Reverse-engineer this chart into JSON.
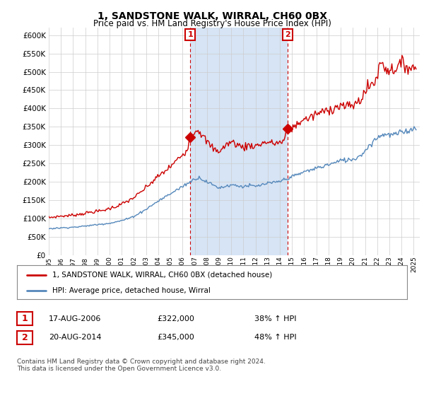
{
  "title": "1, SANDSTONE WALK, WIRRAL, CH60 0BX",
  "subtitle": "Price paid vs. HM Land Registry's House Price Index (HPI)",
  "bg_color": "#ffffff",
  "chart_bg_color": "#ffffff",
  "shade_color": "#d6e4f5",
  "red_line_color": "#cc0000",
  "blue_line_color": "#5588bb",
  "grid_color": "#cccccc",
  "ylim": [
    0,
    620000
  ],
  "yticks": [
    0,
    50000,
    100000,
    150000,
    200000,
    250000,
    300000,
    350000,
    400000,
    450000,
    500000,
    550000,
    600000
  ],
  "xlim_start": 1995,
  "xlim_end": 2025.5,
  "legend_entries": [
    "1, SANDSTONE WALK, WIRRAL, CH60 0BX (detached house)",
    "HPI: Average price, detached house, Wirral"
  ],
  "table_rows": [
    {
      "num": "1",
      "date": "17-AUG-2006",
      "price": "£322,000",
      "hpi": "38% ↑ HPI"
    },
    {
      "num": "2",
      "date": "20-AUG-2014",
      "price": "£345,000",
      "hpi": "48% ↑ HPI"
    }
  ],
  "footnote": "Contains HM Land Registry data © Crown copyright and database right 2024.\nThis data is licensed under the Open Government Licence v3.0.",
  "sale1_year": 2006.63,
  "sale1_price": 322000,
  "sale2_year": 2014.63,
  "sale2_price": 345000,
  "red_waypoints": [
    [
      1995.0,
      103000
    ],
    [
      1995.5,
      105000
    ],
    [
      1996.0,
      107000
    ],
    [
      1996.5,
      108000
    ],
    [
      1997.0,
      110000
    ],
    [
      1997.5,
      112000
    ],
    [
      1998.0,
      115000
    ],
    [
      1998.5,
      118000
    ],
    [
      1999.0,
      120000
    ],
    [
      1999.5,
      123000
    ],
    [
      2000.0,
      128000
    ],
    [
      2000.5,
      133000
    ],
    [
      2001.0,
      140000
    ],
    [
      2001.5,
      148000
    ],
    [
      2002.0,
      158000
    ],
    [
      2002.5,
      170000
    ],
    [
      2003.0,
      185000
    ],
    [
      2003.5,
      200000
    ],
    [
      2004.0,
      215000
    ],
    [
      2004.5,
      228000
    ],
    [
      2005.0,
      242000
    ],
    [
      2005.5,
      258000
    ],
    [
      2006.0,
      275000
    ],
    [
      2006.4,
      295000
    ],
    [
      2006.63,
      322000
    ],
    [
      2007.0,
      338000
    ],
    [
      2007.3,
      342000
    ],
    [
      2007.6,
      328000
    ],
    [
      2008.0,
      310000
    ],
    [
      2008.5,
      292000
    ],
    [
      2009.0,
      285000
    ],
    [
      2009.5,
      298000
    ],
    [
      2010.0,
      308000
    ],
    [
      2010.5,
      302000
    ],
    [
      2011.0,
      295000
    ],
    [
      2011.5,
      300000
    ],
    [
      2012.0,
      298000
    ],
    [
      2012.5,
      305000
    ],
    [
      2013.0,
      308000
    ],
    [
      2013.5,
      305000
    ],
    [
      2014.0,
      308000
    ],
    [
      2014.4,
      318000
    ],
    [
      2014.63,
      345000
    ],
    [
      2015.0,
      348000
    ],
    [
      2015.5,
      360000
    ],
    [
      2016.0,
      370000
    ],
    [
      2016.5,
      375000
    ],
    [
      2017.0,
      385000
    ],
    [
      2017.5,
      390000
    ],
    [
      2018.0,
      398000
    ],
    [
      2018.5,
      402000
    ],
    [
      2019.0,
      408000
    ],
    [
      2019.5,
      405000
    ],
    [
      2020.0,
      410000
    ],
    [
      2020.5,
      420000
    ],
    [
      2021.0,
      445000
    ],
    [
      2021.5,
      465000
    ],
    [
      2022.0,
      490000
    ],
    [
      2022.3,
      525000
    ],
    [
      2022.6,
      515000
    ],
    [
      2023.0,
      505000
    ],
    [
      2023.5,
      510000
    ],
    [
      2024.0,
      520000
    ],
    [
      2024.5,
      515000
    ],
    [
      2025.0,
      510000
    ]
  ],
  "blue_waypoints": [
    [
      1995.0,
      73000
    ],
    [
      1995.5,
      74000
    ],
    [
      1996.0,
      75000
    ],
    [
      1996.5,
      76000
    ],
    [
      1997.0,
      77000
    ],
    [
      1997.5,
      78000
    ],
    [
      1998.0,
      80000
    ],
    [
      1998.5,
      82000
    ],
    [
      1999.0,
      84000
    ],
    [
      1999.5,
      86000
    ],
    [
      2000.0,
      88000
    ],
    [
      2000.5,
      91000
    ],
    [
      2001.0,
      95000
    ],
    [
      2001.5,
      100000
    ],
    [
      2002.0,
      107000
    ],
    [
      2002.5,
      116000
    ],
    [
      2003.0,
      126000
    ],
    [
      2003.5,
      137000
    ],
    [
      2004.0,
      148000
    ],
    [
      2004.5,
      158000
    ],
    [
      2005.0,
      168000
    ],
    [
      2005.5,
      178000
    ],
    [
      2006.0,
      188000
    ],
    [
      2006.5,
      198000
    ],
    [
      2007.0,
      208000
    ],
    [
      2007.3,
      212000
    ],
    [
      2007.6,
      208000
    ],
    [
      2008.0,
      200000
    ],
    [
      2008.5,
      192000
    ],
    [
      2009.0,
      185000
    ],
    [
      2009.5,
      188000
    ],
    [
      2010.0,
      192000
    ],
    [
      2010.5,
      190000
    ],
    [
      2011.0,
      188000
    ],
    [
      2011.5,
      190000
    ],
    [
      2012.0,
      188000
    ],
    [
      2012.5,
      192000
    ],
    [
      2013.0,
      196000
    ],
    [
      2013.5,
      198000
    ],
    [
      2014.0,
      202000
    ],
    [
      2014.5,
      208000
    ],
    [
      2015.0,
      215000
    ],
    [
      2015.5,
      220000
    ],
    [
      2016.0,
      228000
    ],
    [
      2016.5,
      232000
    ],
    [
      2017.0,
      238000
    ],
    [
      2017.5,
      242000
    ],
    [
      2018.0,
      248000
    ],
    [
      2018.5,
      252000
    ],
    [
      2019.0,
      258000
    ],
    [
      2019.5,
      260000
    ],
    [
      2020.0,
      262000
    ],
    [
      2020.5,
      270000
    ],
    [
      2021.0,
      285000
    ],
    [
      2021.5,
      305000
    ],
    [
      2022.0,
      320000
    ],
    [
      2022.5,
      330000
    ],
    [
      2023.0,
      328000
    ],
    [
      2023.5,
      330000
    ],
    [
      2024.0,
      335000
    ],
    [
      2024.5,
      340000
    ],
    [
      2025.0,
      345000
    ]
  ]
}
